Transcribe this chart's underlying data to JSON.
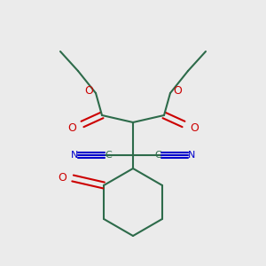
{
  "bg_color": "#ebebeb",
  "bond_color": "#2d6b4a",
  "oxygen_color": "#cc0000",
  "nitrogen_color": "#0000cc",
  "carbon_color": "#2d6b4a",
  "lw": 1.5,
  "fig_w": 3.0,
  "fig_h": 3.0,
  "dpi": 100,
  "xlim": [
    0,
    300
  ],
  "ylim": [
    0,
    300
  ]
}
